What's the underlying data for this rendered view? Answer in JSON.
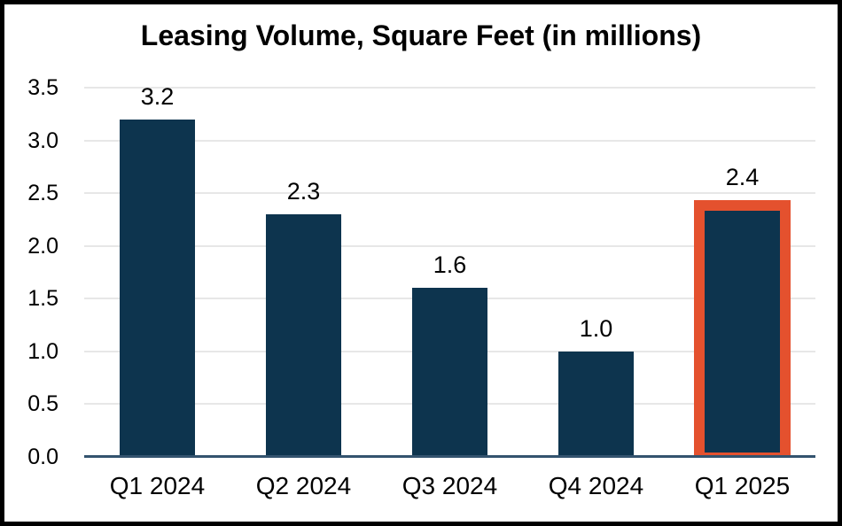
{
  "chart_data": {
    "type": "bar",
    "title": "Leasing Volume, Square Feet (in millions)",
    "categories": [
      "Q1 2024",
      "Q2 2024",
      "Q3 2024",
      "Q4 2024",
      "Q1 2025"
    ],
    "values": [
      3.2,
      2.3,
      1.6,
      1.0,
      2.4
    ],
    "bar_labels": [
      "3.2",
      "2.3",
      "1.6",
      "1.0",
      "2.4"
    ],
    "highlighted_index": 4,
    "highlighted_category": "Q1 2025",
    "xlabel": "",
    "ylabel": "",
    "ylim": [
      0,
      3.5
    ],
    "ytick_step": 0.5,
    "ytick_labels": [
      "0.0",
      "0.5",
      "1.0",
      "1.5",
      "2.0",
      "2.5",
      "3.0",
      "3.5"
    ],
    "grid": true,
    "legend": "none",
    "colors": {
      "bar": "#0D344E",
      "highlight_outline": "#E4512E",
      "gridline": "#E7E7E7",
      "axis_line": "#33536E",
      "frame_border": "#000000",
      "background": "#FFFFFF",
      "text": "#000000"
    }
  }
}
